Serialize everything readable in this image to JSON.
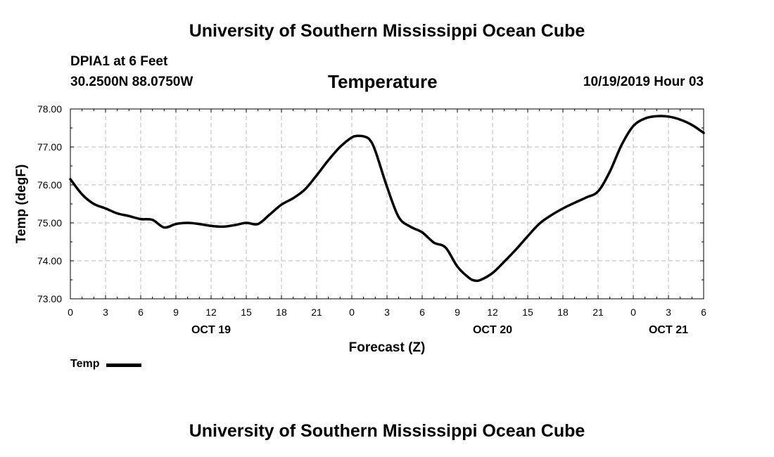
{
  "header": {
    "title": "University of Southern Mississippi Ocean Cube",
    "station": "DPIA1 at 6 Feet",
    "coords": "30.2500N 88.0750W",
    "parameter": "Temperature",
    "timestamp": "10/19/2019 Hour 03"
  },
  "footer": {
    "title": "University of Southern Mississippi Ocean Cube"
  },
  "legend": {
    "label": "Temp"
  },
  "chart_data": {
    "type": "line",
    "title": "Temperature",
    "xlabel": "Forecast (Z)",
    "ylabel": "Temp (degF)",
    "xlim": [
      0,
      54
    ],
    "ylim": [
      73,
      78
    ],
    "x_ticks": [
      0,
      3,
      6,
      9,
      12,
      15,
      18,
      21,
      24,
      27,
      30,
      33,
      36,
      39,
      42,
      45,
      48,
      51,
      54
    ],
    "x_tick_labels": [
      "0",
      "3",
      "6",
      "9",
      "12",
      "15",
      "18",
      "21",
      "0",
      "3",
      "6",
      "9",
      "12",
      "15",
      "18",
      "21",
      "0",
      "3",
      "6"
    ],
    "y_ticks": [
      73,
      74,
      75,
      76,
      77,
      78
    ],
    "y_tick_labels": [
      "73.00",
      "74.00",
      "75.00",
      "76.00",
      "77.00",
      "78.00"
    ],
    "date_labels": [
      {
        "x": 12,
        "label": "OCT 19"
      },
      {
        "x": 36,
        "label": "OCT 20"
      },
      {
        "x": 51,
        "label": "OCT 21"
      }
    ],
    "grid": true,
    "series": [
      {
        "name": "Temp",
        "color": "#000000",
        "x": [
          0,
          1,
          2,
          3,
          4,
          5,
          6,
          7,
          8,
          9,
          10,
          11,
          12,
          13,
          14,
          15,
          16,
          17,
          18,
          19,
          20,
          21,
          22,
          23,
          24,
          24.5,
          25,
          25.5,
          26,
          27,
          28,
          29,
          30,
          31,
          32,
          33,
          34,
          34.5,
          35,
          36,
          37,
          38,
          39,
          40,
          41,
          42,
          43,
          44,
          45,
          46,
          47,
          48,
          49,
          50,
          51,
          52,
          53,
          54
        ],
        "values": [
          76.15,
          75.75,
          75.5,
          75.38,
          75.25,
          75.18,
          75.1,
          75.08,
          74.88,
          74.97,
          75.0,
          74.97,
          74.92,
          74.9,
          74.94,
          75.0,
          74.97,
          75.22,
          75.48,
          75.65,
          75.88,
          76.25,
          76.65,
          77.0,
          77.25,
          77.29,
          77.28,
          77.2,
          76.9,
          75.95,
          75.15,
          74.9,
          74.75,
          74.48,
          74.35,
          73.85,
          73.55,
          73.48,
          73.5,
          73.68,
          73.98,
          74.3,
          74.65,
          74.98,
          75.2,
          75.38,
          75.53,
          75.67,
          75.83,
          76.35,
          77.05,
          77.55,
          77.75,
          77.81,
          77.8,
          77.72,
          77.58,
          77.37
        ]
      }
    ]
  }
}
